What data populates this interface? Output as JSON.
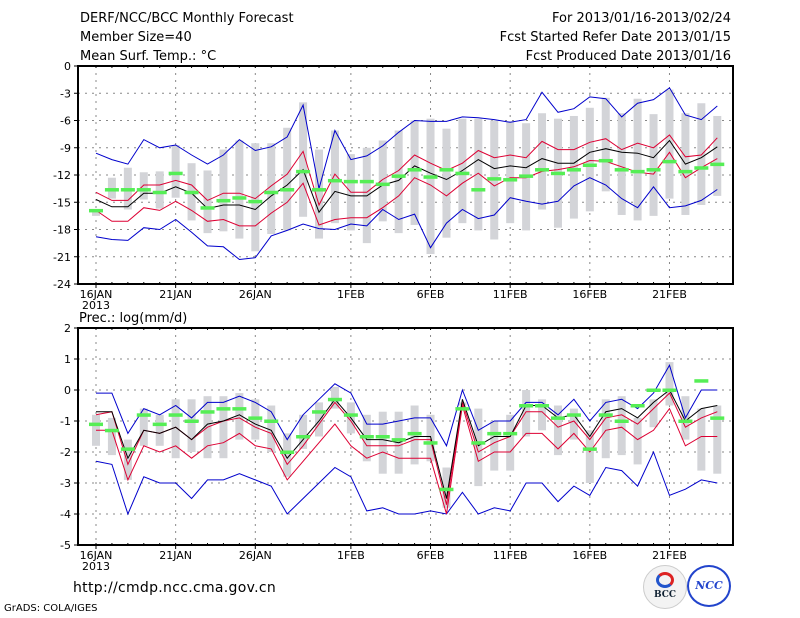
{
  "header": {
    "title": "DERF/NCC/BCC Monthly Forecast",
    "member_size": "Member Size=40",
    "variable": "Mean Surf. Temp.: °C",
    "period": "For 2013/01/16-2013/02/24",
    "started": "Fcst Started Refer Date 2013/01/15",
    "produced": "Fcst Produced Date 2013/01/16"
  },
  "footer": {
    "url": "http://cmdp.ncc.cma.gov.cn",
    "grads": "GrADS: COLA/IGES",
    "logo_bcc": "BCC",
    "logo_ncc": "NCC"
  },
  "colors": {
    "ensemble_max_min": "#0000cc",
    "ensemble_std_band": "#dd0033",
    "ensemble_mean": "#000000",
    "observed_or_control": "#55ee55",
    "spread_bar": "#d3d4d8",
    "grid": "#888888"
  },
  "chart_data": [
    {
      "type": "line",
      "title": "Mean Surf. Temp.: °C",
      "ylabel": "°C",
      "ylim": [
        -24,
        0
      ],
      "yticks": [
        0,
        -3,
        -6,
        -9,
        -12,
        -15,
        -18,
        -21,
        -24
      ],
      "xtick_labels": [
        "16JAN",
        "21JAN",
        "26JAN",
        "1FEB",
        "6FEB",
        "11FEB",
        "16FEB",
        "21FEB"
      ],
      "xtick_days": [
        0,
        5,
        10,
        16,
        21,
        26,
        31,
        36
      ],
      "x_first_label_year": "2013",
      "grid": true,
      "days": 40,
      "series": [
        {
          "name": "max",
          "color": "#0000cc",
          "values": [
            -9.6,
            -10.3,
            -10.8,
            -8.1,
            -9.0,
            -8.7,
            -9.8,
            -10.8,
            -9.8,
            -8.1,
            -9.3,
            -8.9,
            -7.8,
            -4.3,
            -13.5,
            -7.1,
            -10.3,
            -9.9,
            -8.8,
            -7.3,
            -6.0,
            -6.1,
            -6.1,
            -5.6,
            -5.7,
            -5.9,
            -6.2,
            -5.9,
            -2.9,
            -5.1,
            -4.7,
            -3.4,
            -3.6,
            -5.6,
            -4.1,
            -3.7,
            -2.4,
            -5.4,
            -5.9,
            -4.4
          ]
        },
        {
          "name": "upper",
          "color": "#dd0033",
          "values": [
            -13.9,
            -14.8,
            -14.8,
            -13.1,
            -13.1,
            -12.6,
            -13.1,
            -14.8,
            -14.0,
            -14.0,
            -14.6,
            -13.2,
            -11.9,
            -9.4,
            -15.3,
            -11.9,
            -13.9,
            -13.9,
            -12.5,
            -11.5,
            -9.8,
            -10.7,
            -11.5,
            -10.7,
            -9.3,
            -10.1,
            -9.8,
            -10.1,
            -8.3,
            -9.2,
            -9.2,
            -8.4,
            -8.0,
            -9.2,
            -8.5,
            -9.0,
            -7.6,
            -10.0,
            -9.8,
            -7.9
          ]
        },
        {
          "name": "mean",
          "color": "#000000",
          "values": [
            -14.7,
            -15.5,
            -15.5,
            -14.0,
            -14.0,
            -13.3,
            -14.0,
            -15.7,
            -15.3,
            -15.3,
            -15.8,
            -14.3,
            -13.1,
            -11.4,
            -16.1,
            -13.8,
            -14.3,
            -14.3,
            -13.1,
            -12.6,
            -11.0,
            -11.8,
            -12.5,
            -11.5,
            -10.3,
            -11.3,
            -11.0,
            -11.2,
            -10.2,
            -10.7,
            -10.7,
            -9.5,
            -9.1,
            -9.5,
            -9.6,
            -10.1,
            -8.2,
            -10.8,
            -10.1,
            -8.9
          ]
        },
        {
          "name": "lower",
          "color": "#dd0033",
          "values": [
            -15.9,
            -17.1,
            -17.1,
            -15.6,
            -15.9,
            -14.9,
            -15.9,
            -17.1,
            -16.9,
            -17.6,
            -17.6,
            -16.2,
            -15.0,
            -12.9,
            -17.5,
            -16.9,
            -16.7,
            -16.7,
            -15.6,
            -14.3,
            -12.3,
            -13.1,
            -14.3,
            -12.9,
            -11.8,
            -13.2,
            -12.3,
            -12.3,
            -11.6,
            -11.4,
            -11.1,
            -10.4,
            -10.5,
            -11.1,
            -11.7,
            -11.9,
            -9.5,
            -12.3,
            -11.2,
            -10.2
          ]
        },
        {
          "name": "min",
          "color": "#0000cc",
          "values": [
            -18.8,
            -19.1,
            -19.2,
            -17.8,
            -18.0,
            -16.9,
            -18.3,
            -19.8,
            -19.9,
            -21.3,
            -21.1,
            -18.7,
            -18.1,
            -17.4,
            -17.9,
            -18.0,
            -17.4,
            -17.6,
            -15.8,
            -16.9,
            -16.3,
            -20.0,
            -17.3,
            -15.8,
            -16.8,
            -16.4,
            -14.5,
            -14.9,
            -15.2,
            -14.9,
            -13.2,
            -12.3,
            -13.1,
            -14.6,
            -15.6,
            -13.3,
            -15.6,
            -15.4,
            -14.8,
            -13.6
          ]
        },
        {
          "name": "spread_top",
          "color": "#d3d4d8",
          "values": [
            -15.8,
            -12.3,
            -11.2,
            -11.7,
            -11.6,
            -8.7,
            -10.7,
            -11.5,
            -9.2,
            -8.2,
            -8.5,
            -8.5,
            -6.8,
            -4.0,
            -9.2,
            -7.1,
            -9.7,
            -9.0,
            -8.2,
            -7.1,
            -6.0,
            -5.8,
            -6.9,
            -5.8,
            -5.8,
            -6.0,
            -6.1,
            -6.3,
            -5.2,
            -5.8,
            -5.5,
            -4.6,
            -3.5,
            -5.2,
            -3.6,
            -5.3,
            -2.6,
            -5.2,
            -4.1,
            -5.5
          ]
        },
        {
          "name": "spread_bottom",
          "color": "#d3d4d8",
          "values": [
            -16.5,
            -14.6,
            -15.8,
            -14.7,
            -15.7,
            -14.5,
            -17.0,
            -18.4,
            -18.2,
            -19.0,
            -20.4,
            -18.5,
            -18.1,
            -16.6,
            -19.0,
            -17.3,
            -18.1,
            -19.5,
            -17.1,
            -18.4,
            -17.5,
            -20.7,
            -18.9,
            -17.3,
            -18.1,
            -19.1,
            -17.3,
            -18.1,
            -15.8,
            -17.8,
            -16.8,
            -16.0,
            -13.8,
            -16.4,
            -17.0,
            -16.5,
            -14.6,
            -16.4,
            -15.3,
            -14.3
          ]
        },
        {
          "name": "control",
          "color": "#55ee55",
          "values": [
            -15.9,
            -13.6,
            -13.6,
            -13.6,
            -13.9,
            -11.8,
            -13.9,
            -15.6,
            -14.8,
            -14.5,
            -14.9,
            -13.9,
            -13.6,
            -11.6,
            -13.6,
            -12.6,
            -12.7,
            -12.7,
            -13.0,
            -12.1,
            -11.4,
            -12.2,
            -11.4,
            -11.8,
            -13.6,
            -12.4,
            -12.5,
            -12.1,
            -11.4,
            -11.8,
            -11.4,
            -10.9,
            -10.4,
            -11.4,
            -11.6,
            -11.4,
            -10.5,
            -11.6,
            -11.2,
            -10.8
          ]
        }
      ]
    },
    {
      "type": "line",
      "title": "Prec.: log(mm/d)",
      "ylabel": "log(mm/d)",
      "ylim": [
        -5,
        2
      ],
      "yticks": [
        2,
        1,
        0,
        -1,
        -2,
        -3,
        -4,
        -5
      ],
      "xtick_labels": [
        "16JAN",
        "21JAN",
        "26JAN",
        "1FEB",
        "6FEB",
        "11FEB",
        "16FEB",
        "21FEB"
      ],
      "xtick_days": [
        0,
        5,
        10,
        16,
        21,
        26,
        31,
        36
      ],
      "x_first_label_year": "2013",
      "grid": true,
      "days": 40,
      "series": [
        {
          "name": "max",
          "color": "#0000cc",
          "values": [
            -0.1,
            -0.1,
            -1.4,
            -0.6,
            -0.8,
            -0.5,
            -0.9,
            -0.4,
            -0.4,
            -0.2,
            -0.4,
            -0.7,
            -1.6,
            -0.8,
            -0.3,
            0.2,
            -0.1,
            -1.1,
            -1.1,
            -1.0,
            -0.9,
            -0.9,
            -1.8,
            0.0,
            -1.3,
            -1.0,
            -1.0,
            -0.4,
            -0.4,
            -0.8,
            -0.3,
            -1.0,
            -0.4,
            -0.3,
            -0.6,
            -0.1,
            0.8,
            -0.9,
            0.0,
            0.0
          ]
        },
        {
          "name": "upper",
          "color": "#dd0033",
          "values": [
            -0.8,
            -0.7,
            -2.4,
            -1.3,
            -1.4,
            -1.2,
            -1.6,
            -1.2,
            -1.0,
            -0.9,
            -1.2,
            -1.4,
            -2.4,
            -1.8,
            -1.1,
            -0.4,
            -1.0,
            -1.8,
            -1.8,
            -1.8,
            -1.6,
            -1.6,
            -3.7,
            -0.4,
            -2.0,
            -1.7,
            -1.5,
            -0.7,
            -0.7,
            -1.2,
            -1.0,
            -1.6,
            -0.9,
            -0.8,
            -1.1,
            -0.6,
            -0.1,
            -1.2,
            -0.9,
            -0.7
          ]
        },
        {
          "name": "mean",
          "color": "#000000",
          "values": [
            -0.7,
            -0.7,
            -2.2,
            -1.3,
            -1.4,
            -1.2,
            -1.6,
            -1.1,
            -1.0,
            -0.8,
            -1.1,
            -1.3,
            -2.2,
            -1.6,
            -1.0,
            -0.3,
            -0.9,
            -1.6,
            -1.6,
            -1.7,
            -1.5,
            -1.5,
            -3.5,
            -0.3,
            -1.8,
            -1.5,
            -1.5,
            -0.5,
            -0.5,
            -0.9,
            -0.8,
            -1.5,
            -0.7,
            -0.6,
            -0.9,
            -0.4,
            0.0,
            -1.0,
            -0.6,
            -0.5
          ]
        },
        {
          "name": "lower",
          "color": "#dd0033",
          "values": [
            -1.3,
            -1.3,
            -2.9,
            -1.8,
            -2.0,
            -1.8,
            -2.2,
            -1.8,
            -1.7,
            -1.4,
            -1.8,
            -1.9,
            -2.9,
            -2.3,
            -1.7,
            -1.1,
            -1.8,
            -2.2,
            -2.0,
            -2.2,
            -2.2,
            -2.2,
            -4.0,
            -0.5,
            -2.3,
            -2.0,
            -2.0,
            -1.4,
            -1.4,
            -1.9,
            -1.4,
            -2.0,
            -1.3,
            -1.2,
            -1.6,
            -1.3,
            -0.6,
            -1.8,
            -1.5,
            -1.5
          ]
        },
        {
          "name": "min",
          "color": "#0000cc",
          "values": [
            -2.3,
            -2.4,
            -4.0,
            -2.8,
            -3.0,
            -3.0,
            -3.5,
            -2.9,
            -2.9,
            -2.7,
            -2.9,
            -3.1,
            -4.0,
            -3.5,
            -3.0,
            -2.5,
            -2.8,
            -3.9,
            -3.8,
            -4.0,
            -4.0,
            -3.9,
            -4.0,
            -3.3,
            -4.0,
            -3.8,
            -3.9,
            -3.0,
            -3.0,
            -3.6,
            -3.1,
            -3.4,
            -2.5,
            -2.6,
            -3.1,
            -2.0,
            -3.4,
            -3.2,
            -2.9,
            -3.0
          ]
        },
        {
          "name": "spread_top",
          "color": "#d3d4d8",
          "values": [
            -0.8,
            -0.9,
            -1.6,
            -0.6,
            -0.8,
            -0.3,
            -0.3,
            -0.2,
            -0.2,
            -0.1,
            -0.3,
            -0.5,
            -1.4,
            -0.8,
            -0.4,
            0.1,
            -0.4,
            -0.8,
            -0.7,
            -0.7,
            -0.5,
            -0.8,
            -2.5,
            -0.4,
            -0.6,
            -1.0,
            -0.8,
            0.0,
            -0.3,
            -0.5,
            -0.6,
            -1.3,
            -0.3,
            -0.2,
            -0.9,
            -0.3,
            0.9,
            -0.2,
            -0.6,
            -0.5
          ]
        },
        {
          "name": "spread_bottom",
          "color": "#d3d4d8",
          "values": [
            -1.8,
            -2.1,
            -2.9,
            -1.8,
            -1.8,
            -2.2,
            -2.0,
            -2.2,
            -2.2,
            -1.6,
            -1.6,
            -2.0,
            -2.8,
            -1.9,
            -1.5,
            -0.6,
            -1.4,
            -2.3,
            -2.7,
            -2.7,
            -2.4,
            -2.3,
            -3.8,
            -0.5,
            -3.1,
            -2.6,
            -2.6,
            -1.5,
            -1.3,
            -2.1,
            -1.6,
            -3.0,
            -2.2,
            -2.1,
            -2.4,
            -1.2,
            -0.5,
            -1.6,
            -2.6,
            -2.7
          ]
        },
        {
          "name": "control",
          "color": "#55ee55",
          "values": [
            -1.1,
            -1.3,
            -1.9,
            -0.8,
            -1.1,
            -0.8,
            -1.0,
            -0.7,
            -0.6,
            -0.6,
            -0.9,
            -1.0,
            -2.0,
            -1.5,
            -0.7,
            -0.3,
            -0.8,
            -1.5,
            -1.5,
            -1.6,
            -1.4,
            -1.7,
            -3.2,
            -0.6,
            -1.7,
            -1.4,
            -1.4,
            -0.5,
            -0.5,
            -0.9,
            -0.8,
            -1.9,
            -0.8,
            -1.0,
            -0.5,
            0.0,
            0.0,
            -1.0,
            0.3,
            -0.9
          ]
        }
      ]
    }
  ]
}
